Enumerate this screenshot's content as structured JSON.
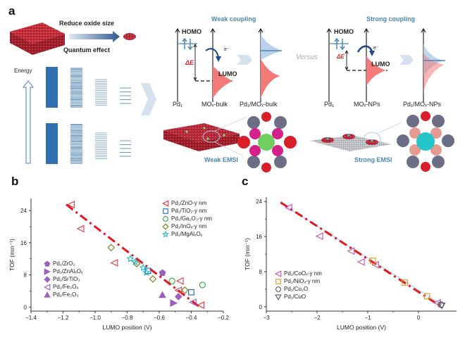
{
  "panel_a": {
    "label": "a",
    "reduce_size_label": "Reduce oxide size",
    "quantum_effect_label": "Quantum effect",
    "energy_label": "Energy",
    "weak_coupling_title": "Weak coupling",
    "strong_coupling_title": "Strong coupling",
    "versus_label": "Versus",
    "homo_label": "HOMO",
    "lumo_label": "LUMO",
    "delta_e_label": "ΔE",
    "electron_label": "e⁻",
    "weak_axes": [
      "Pd₁",
      "MOₓ-bulk",
      "Pd₁/MOₓ-bulk"
    ],
    "strong_axes": [
      "Pd₁",
      "MOₓ-NPs",
      "Pd₁/MOₓ-NPs"
    ],
    "weak_emsi_label": "Weak EMSI",
    "strong_emsi_label": "Strong EMSI",
    "colors": {
      "accent_blue": "#4a87b5",
      "lumo_red": "#f26b6b",
      "band_blue": "#2f6fb0"
    }
  },
  "chart_data": [
    {
      "id": "b",
      "type": "scatter",
      "panel_label": "b",
      "title": "",
      "xlabel": "LUMO position (V)",
      "ylabel": "TOF (min⁻¹)",
      "xlim": [
        -1.4,
        -0.2
      ],
      "ylim": [
        -1,
        27
      ],
      "xticks": [
        -1.4,
        -1.2,
        -1.0,
        -0.8,
        -0.6,
        -0.4,
        -0.2
      ],
      "xtick_labels": [
        "−1.4",
        "−1.2",
        "−1.0",
        "−0.8",
        "−0.6",
        "−0.4",
        "−0.2"
      ],
      "yticks": [
        0,
        8,
        16,
        24
      ],
      "ytick_labels": [
        "0",
        "8",
        "16",
        "24"
      ],
      "grid": false,
      "fit_line": {
        "x": [
          -1.18,
          -0.34
        ],
        "y": [
          25.5,
          -0.2
        ],
        "color": "#e8141c",
        "style": "dash-dot"
      },
      "legend_top_right": [
        {
          "name": "Pd₁/ZnO-y nm",
          "marker": "triangle-left",
          "color": "#e8373c"
        },
        {
          "name": "Pd₁/TiO₂-y nm",
          "marker": "square",
          "color": "#2060c0"
        },
        {
          "name": "Pd₁/Ga₂O₃-y nm",
          "marker": "circle",
          "color": "#2aa14a"
        },
        {
          "name": "Pd₁/InOₓ-y nm",
          "marker": "diamond",
          "color": "#7a7a1a"
        },
        {
          "name": "Pd₁/MgAlₓOᵧ",
          "marker": "star",
          "color": "#21b5c8"
        }
      ],
      "legend_bottom_left": [
        {
          "name": "Pd₁/ZrO₂",
          "marker": "pentagon-filled",
          "color": "#9c5fc0"
        },
        {
          "name": "Pd₁/ZnAlₓOᵧ",
          "marker": "triangle-right-filled",
          "color": "#9c5fc0"
        },
        {
          "name": "Pd₁/SrTiO₃",
          "marker": "diamond-filled",
          "color": "#9c5fc0"
        },
        {
          "name": "Pd₁/Fe₃O₄",
          "marker": "triangle-left",
          "color": "#9c5fc0"
        },
        {
          "name": "Pd₁/Fe₂O₃",
          "marker": "triangle-up-filled",
          "color": "#9c5fc0"
        }
      ],
      "series": [
        {
          "name": "Pd₁/ZnO-y nm",
          "points": [
            [
              -1.15,
              25.5
            ],
            [
              -1.09,
              19.5
            ],
            [
              -0.88,
              11.0
            ],
            [
              -0.47,
              6.5
            ],
            [
              -0.34,
              0.5
            ],
            [
              -0.48,
              4.2
            ]
          ]
        },
        {
          "name": "Pd₁/TiO₂-y nm",
          "points": [
            [
              -0.67,
              9.0
            ],
            [
              -0.4,
              3.7
            ]
          ]
        },
        {
          "name": "Pd₁/Ga₂O₃-y nm",
          "points": [
            [
              -0.52,
              6.5
            ],
            [
              -0.33,
              5.5
            ]
          ]
        },
        {
          "name": "Pd₁/InOₓ-y nm",
          "points": [
            [
              -0.9,
              14.8
            ],
            [
              -0.74,
              10.8
            ],
            [
              -0.64,
              7.0
            ],
            [
              -0.44,
              4.2
            ]
          ]
        },
        {
          "name": "Pd₁/MgAlₓOᵧ",
          "points": [
            [
              -0.78,
              12.0
            ],
            [
              -0.75,
              11.2
            ],
            [
              -0.7,
              9.8
            ],
            [
              -0.68,
              8.6
            ]
          ]
        },
        {
          "name": "Pd₁/ZrO₂",
          "points": [
            [
              -0.58,
              8.5
            ]
          ]
        },
        {
          "name": "Pd₁/ZnAlₓOᵧ",
          "points": [
            [
              -0.51,
              1.0
            ]
          ]
        },
        {
          "name": "Pd₁/SrTiO₃",
          "points": [
            [
              -0.48,
              2.6
            ]
          ]
        },
        {
          "name": "Pd₁/Fe₃O₄",
          "points": [
            [
              -0.39,
              1.2
            ]
          ]
        },
        {
          "name": "Pd₁/Fe₂O₃",
          "points": [
            [
              -0.58,
              3.0
            ]
          ]
        }
      ]
    },
    {
      "id": "c",
      "type": "scatter",
      "panel_label": "c",
      "title": "",
      "xlabel": "LUMO position (V)",
      "ylabel": "TOF (min⁻¹)",
      "xlim": [
        -3,
        0.75
      ],
      "ylim": [
        -1,
        25
      ],
      "xticks": [
        -3,
        -2,
        -1,
        0
      ],
      "xtick_labels": [
        "−3",
        "−2",
        "−1",
        "0"
      ],
      "yticks": [
        0,
        8,
        16,
        24
      ],
      "ytick_labels": [
        "0",
        "8",
        "16",
        "24"
      ],
      "grid": false,
      "fit_line": {
        "x": [
          -2.72,
          0.48
        ],
        "y": [
          23.8,
          -0.2
        ],
        "color": "#e8141c",
        "style": "dash-dot"
      },
      "guide_line": {
        "x": [
          -2.6,
          0.5
        ],
        "y": [
          22.8,
          0.2
        ],
        "color": "#a9d8ee"
      },
      "legend_bottom_left": [
        {
          "name": "Pd₁/CoOₓ-y nm",
          "marker": "triangle-left",
          "color": "#c050b0"
        },
        {
          "name": "Pd₁/NiOₓ-y nm",
          "marker": "square",
          "color": "#d69a1a"
        },
        {
          "name": "Pd₁/Cu₂O",
          "marker": "circle",
          "color": "#555555"
        },
        {
          "name": "Pd₁/CuO",
          "marker": "triangle-down",
          "color": "#555555"
        }
      ],
      "series": [
        {
          "name": "Pd₁/CoOₓ-y nm",
          "points": [
            [
              -2.56,
              22.6
            ],
            [
              -1.95,
              16.1
            ],
            [
              -1.33,
              12.7
            ],
            [
              -1.13,
              10.2
            ],
            [
              -0.85,
              9.6
            ],
            [
              0.37,
              0.9
            ]
          ]
        },
        {
          "name": "Pd₁/NiOₓ-y nm",
          "points": [
            [
              -0.9,
              10.5
            ],
            [
              -0.27,
              5.5
            ],
            [
              0.17,
              2.4
            ]
          ]
        },
        {
          "name": "Pd₁/Cu₂O",
          "points": [
            [
              0.44,
              0.5
            ]
          ]
        },
        {
          "name": "Pd₁/CuO",
          "points": [
            [
              0.46,
              0.3
            ]
          ]
        }
      ]
    }
  ]
}
